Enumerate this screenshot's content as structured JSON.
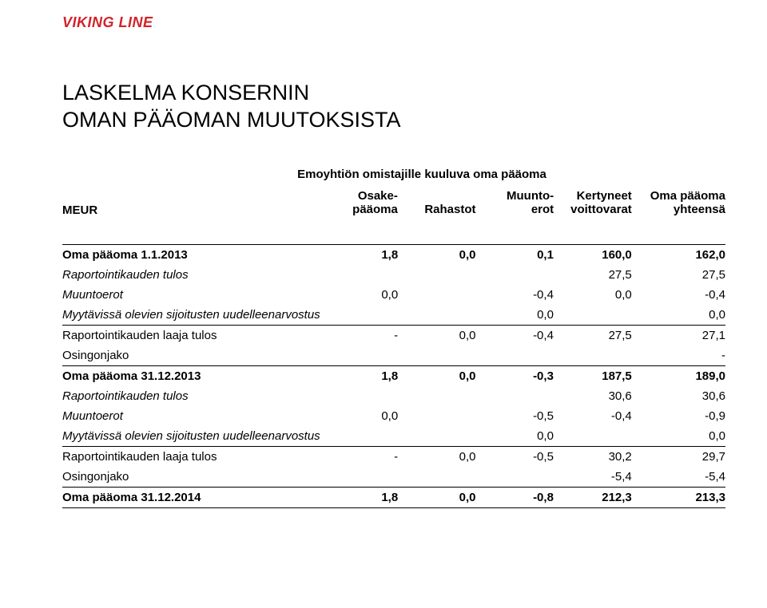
{
  "brand": {
    "name": "VIKING LINE",
    "color": "#d2232a"
  },
  "title": {
    "line1": "LASKELMA KONSERNIN",
    "line2": "OMAN PÄÄOMAN MUUTOKSISTA"
  },
  "superHeader": "Emoyhtiön omistajille kuuluva oma pääoma",
  "columns": {
    "meur": "MEUR",
    "osake1": "Osake-",
    "osake2": "pääoma",
    "rahastot": "Rahastot",
    "muunto1": "Muunto-",
    "muunto2": "erot",
    "kertyneet1": "Kertyneet",
    "kertyneet2": "voittovarat",
    "oma1": "Oma pääoma",
    "oma2": "yhteensä"
  },
  "rows": [
    {
      "label": "Oma pääoma 1.1.2013",
      "c1": "1,8",
      "c2": "0,0",
      "c3": "0,1",
      "c4": "160,0",
      "c5": "162,0",
      "bold": true,
      "topBorder": true
    },
    {
      "label": "Raportointikauden tulos",
      "c1": "",
      "c2": "",
      "c3": "",
      "c4": "27,5",
      "c5": "27,5",
      "italic": true
    },
    {
      "label": "Muuntoerot",
      "c1": "0,0",
      "c2": "",
      "c3": "-0,4",
      "c4": "0,0",
      "c5": "-0,4",
      "italic": true
    },
    {
      "label": "Myytävissä olevien sijoitusten uudelleenarvostus",
      "c1": "",
      "c2": "",
      "c3": "0,0",
      "c4": "",
      "c5": "0,0",
      "italic": true
    },
    {
      "label": "Raportointikauden laaja tulos",
      "c1": "-",
      "c2": "0,0",
      "c3": "-0,4",
      "c4": "27,5",
      "c5": "27,1",
      "topBorder": true
    },
    {
      "label": "Osingonjako",
      "c1": "",
      "c2": "",
      "c3": "",
      "c4": "",
      "c5": "-",
      "bottomBorder": true
    },
    {
      "label": "Oma pääoma 31.12.2013",
      "c1": "1,8",
      "c2": "0,0",
      "c3": "-0,3",
      "c4": "187,5",
      "c5": "189,0",
      "bold": true
    },
    {
      "label": "Raportointikauden tulos",
      "c1": "",
      "c2": "",
      "c3": "",
      "c4": "30,6",
      "c5": "30,6",
      "italic": true
    },
    {
      "label": "Muuntoerot",
      "c1": "0,0",
      "c2": "",
      "c3": "-0,5",
      "c4": "-0,4",
      "c5": "-0,9",
      "italic": true
    },
    {
      "label": "Myytävissä olevien sijoitusten uudelleenarvostus",
      "c1": "",
      "c2": "",
      "c3": "0,0",
      "c4": "",
      "c5": "0,0",
      "italic": true
    },
    {
      "label": "Raportointikauden laaja tulos",
      "c1": "-",
      "c2": "0,0",
      "c3": "-0,5",
      "c4": "30,2",
      "c5": "29,7",
      "topBorder": true
    },
    {
      "label": "Osingonjako",
      "c1": "",
      "c2": "",
      "c3": "",
      "c4": "-5,4",
      "c5": "-5,4",
      "bottomBorder": true
    },
    {
      "label": "Oma pääoma 31.12.2014",
      "c1": "1,8",
      "c2": "0,0",
      "c3": "-0,8",
      "c4": "212,3",
      "c5": "213,3",
      "bold": true,
      "bottomBorder": true
    }
  ]
}
